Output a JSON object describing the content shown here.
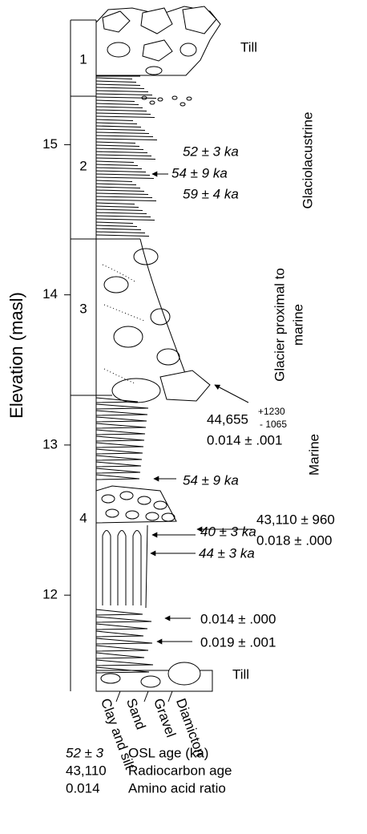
{
  "axis": {
    "label": "Elevation (masl)",
    "ticks": [
      12,
      13,
      14,
      15
    ],
    "range": [
      11.36,
      15.83
    ]
  },
  "units": [
    "1",
    "2",
    "3",
    "4"
  ],
  "facies": [
    "Till",
    "Glaciolacustrine",
    "Glacier proximal to",
    "marine",
    "Marine",
    "Till"
  ],
  "samples": [
    "52 ± 3 ka",
    "54 ± 9 ka",
    "59 ± 4 ka",
    "44,655",
    "+1230",
    "- 1065",
    "0.014 ± .001",
    "54 ± 9 ka",
    "40 ± 3 ka",
    "43,110 ± 960",
    "0.018 ± .000",
    "44 ± 3 ka",
    "0.014 ± .000",
    "0.019 ± .001"
  ],
  "columns": [
    "Clay and silt",
    "Sand",
    "Gravel",
    "Diamicton"
  ],
  "legend": [
    {
      "symbol": "52 ± 3",
      "meaning": "OSL age (ka)"
    },
    {
      "symbol": "43,110",
      "meaning": "Radiocarbon age"
    },
    {
      "symbol": "0.014",
      "meaning": "Amino acid ratio"
    }
  ]
}
